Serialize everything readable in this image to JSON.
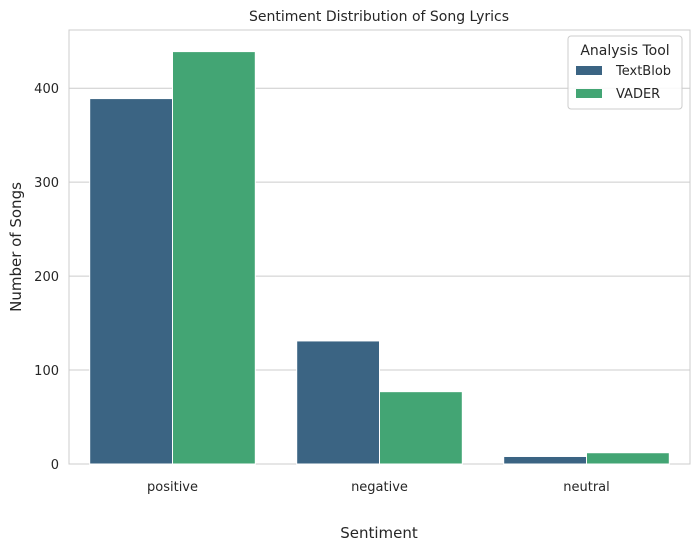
{
  "chart_data": {
    "type": "bar",
    "title": "Sentiment Distribution of Song Lyrics",
    "xlabel": "Sentiment",
    "ylabel": "Number of Songs",
    "categories": [
      "positive",
      "negative",
      "neutral"
    ],
    "series": [
      {
        "name": "TextBlob",
        "color": "#3b6483",
        "values": [
          389,
          131,
          8
        ]
      },
      {
        "name": "VADER",
        "color": "#43a574",
        "values": [
          439,
          77,
          12
        ]
      }
    ],
    "ylim": [
      0,
      462
    ],
    "yticks": [
      0,
      100,
      200,
      300,
      400
    ],
    "grid": true,
    "legend": {
      "title": "Analysis Tool",
      "placement": "top-right"
    }
  }
}
